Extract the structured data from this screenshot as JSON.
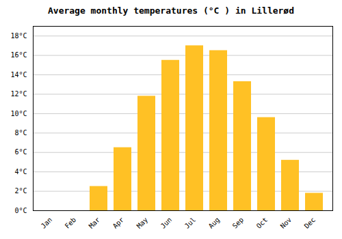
{
  "chart_data": {
    "type": "bar",
    "title": "Average monthly temperatures (°C ) in Lillerød",
    "categories": [
      "Jan",
      "Feb",
      "Mar",
      "Apr",
      "May",
      "Jun",
      "Jul",
      "Aug",
      "Sep",
      "Oct",
      "Nov",
      "Dec"
    ],
    "values": [
      0.0,
      0.0,
      2.5,
      6.5,
      11.8,
      15.5,
      17.0,
      16.5,
      13.3,
      9.6,
      5.2,
      1.8
    ],
    "color": "#FFC125",
    "ylim": [
      0,
      19
    ],
    "yticks": [
      {
        "value": 0,
        "label": "0°C"
      },
      {
        "value": 2,
        "label": "2°C"
      },
      {
        "value": 4,
        "label": "4°C"
      },
      {
        "value": 6,
        "label": "6°C"
      },
      {
        "value": 8,
        "label": "8°C"
      },
      {
        "value": 10,
        "label": "10°C"
      },
      {
        "value": 12,
        "label": "12°C"
      },
      {
        "value": 14,
        "label": "14°C"
      },
      {
        "value": 16,
        "label": "16°C"
      },
      {
        "value": 18,
        "label": "18°C"
      }
    ],
    "grid": true
  }
}
